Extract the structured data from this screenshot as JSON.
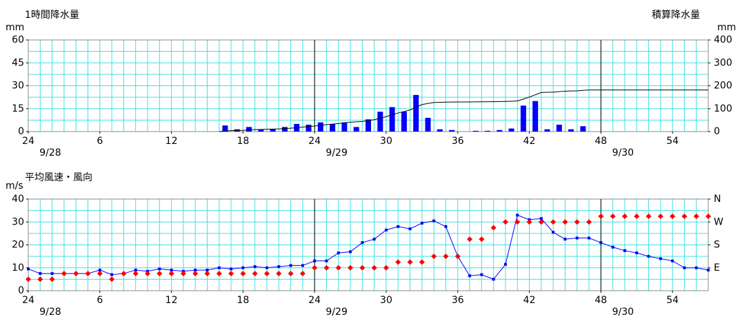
{
  "chart_data": [
    {
      "type": "bar",
      "title": "1時間降水量",
      "y_label": "mm",
      "y2_title": "積算降水量",
      "y2_label": "mm",
      "xlim": [
        0,
        57
      ],
      "xticks": [
        {
          "value": 0,
          "label": "24"
        },
        6,
        12,
        18,
        24,
        30,
        36,
        42,
        48,
        54
      ],
      "date_labels": [
        {
          "x": 0,
          "label": "9/28"
        },
        {
          "x": 24,
          "label": "9/29"
        },
        {
          "x": 48,
          "label": "9/30"
        }
      ],
      "ylim": [
        0,
        60
      ],
      "yticks": [
        0,
        15,
        30,
        45,
        60
      ],
      "y2lim": [
        0,
        400
      ],
      "y2ticks": [
        0,
        100,
        200,
        300,
        400
      ],
      "grid": true,
      "grid_color": "#40e0e0",
      "xgrid_step": 1,
      "ygrid_step": 7.5,
      "series": [
        {
          "type": "bar",
          "color": "#0000ff",
          "x": [
            16.5,
            17.5,
            18.5,
            19.5,
            20.5,
            21.5,
            22.5,
            23.5,
            24.5,
            25.5,
            26.5,
            27.5,
            28.5,
            29.5,
            30.5,
            31.5,
            32.5,
            33.5,
            34.5,
            35.5,
            36.5,
            37.5,
            38.5,
            39.5,
            40.5,
            41.5,
            42.5,
            43.5,
            44.5,
            45.5,
            46.5
          ],
          "values": [
            4,
            1.5,
            3,
            1.5,
            1.5,
            3,
            5,
            4.5,
            6,
            5,
            6,
            3,
            8,
            13,
            16,
            13,
            24,
            9,
            1.5,
            1,
            0,
            0.5,
            0.5,
            1,
            2,
            17,
            20,
            1.5,
            4.5,
            1.5,
            3.5
          ]
        },
        {
          "type": "line",
          "axis": "y2",
          "color": "#000000",
          "x": [
            16,
            17,
            18,
            19,
            20,
            21,
            22,
            23,
            24,
            25,
            26,
            27,
            28,
            29,
            30,
            31,
            32,
            33,
            34,
            35,
            36,
            37,
            38,
            39,
            40,
            41,
            42,
            43,
            44,
            45,
            46,
            47,
            57
          ],
          "values": [
            0,
            4,
            5.5,
            8.5,
            10,
            11.5,
            14.5,
            19.5,
            24,
            30,
            35,
            41,
            44,
            52,
            65,
            81,
            94,
            118,
            127,
            128.5,
            129.5,
            129.5,
            130,
            130.5,
            131.5,
            133.5,
            150.5,
            170.5,
            172,
            176.5,
            178,
            181.5,
            181.5
          ]
        }
      ]
    },
    {
      "type": "line",
      "title": "平均風速・風向",
      "y_label": "m/s",
      "xlim": [
        0,
        57
      ],
      "xticks": [
        {
          "value": 0,
          "label": "24"
        },
        6,
        12,
        18,
        24,
        30,
        36,
        42,
        48,
        54
      ],
      "date_labels": [
        {
          "x": 0,
          "label": "9/28"
        },
        {
          "x": 24,
          "label": "9/29"
        },
        {
          "x": 48,
          "label": "9/30"
        }
      ],
      "ylim": [
        0,
        40
      ],
      "yticks": [
        0,
        10,
        20,
        30,
        40
      ],
      "y2lim": [
        0,
        360
      ],
      "y2ticks": [
        {
          "value": 90,
          "label": "E"
        },
        {
          "value": 180,
          "label": "S"
        },
        {
          "value": 270,
          "label": "W"
        },
        {
          "value": 360,
          "label": "N"
        }
      ],
      "y2tick_color": "#ff0000",
      "grid": true,
      "grid_color": "#40e0e0",
      "xgrid_step": 1,
      "ygrid_step": 5,
      "x": [
        0,
        1,
        2,
        3,
        4,
        5,
        6,
        7,
        8,
        9,
        10,
        11,
        12,
        13,
        14,
        15,
        16,
        17,
        18,
        19,
        20,
        21,
        22,
        23,
        24,
        25,
        26,
        27,
        28,
        29,
        30,
        31,
        32,
        33,
        34,
        35,
        36,
        37,
        38,
        39,
        40,
        41,
        42,
        43,
        44,
        45,
        46,
        47,
        48,
        49,
        50,
        51,
        52,
        53,
        54,
        55,
        56,
        57
      ],
      "series": [
        {
          "type": "line",
          "color": "#0000ff",
          "marker": "square",
          "values": [
            9.5,
            7.5,
            7.5,
            7.5,
            7.5,
            7.5,
            9,
            7,
            7.5,
            9,
            8.5,
            9.5,
            9,
            8.5,
            9,
            9,
            10,
            9.5,
            10,
            10.5,
            10,
            10.5,
            11,
            11,
            13,
            13,
            16.5,
            17,
            21,
            22.5,
            26.5,
            28,
            27,
            29.5,
            30.5,
            28,
            15,
            6.5,
            7,
            5,
            11.5,
            33,
            31,
            31.5,
            25.5,
            22.5,
            23,
            23,
            21,
            19,
            17.5,
            16.5,
            15,
            14,
            13,
            10,
            10,
            9
          ]
        },
        {
          "type": "scatter",
          "axis": "y2",
          "color": "#ff0000",
          "marker": "diamond",
          "values": [
            45,
            45,
            45,
            67.5,
            67.5,
            67.5,
            67.5,
            45,
            67.5,
            67.5,
            67.5,
            67.5,
            67.5,
            67.5,
            67.5,
            67.5,
            67.5,
            67.5,
            67.5,
            67.5,
            67.5,
            67.5,
            67.5,
            67.5,
            90,
            90,
            90,
            90,
            90,
            90,
            90,
            112.5,
            112.5,
            112.5,
            135,
            135,
            135,
            202.5,
            202.5,
            247.5,
            270,
            270,
            270,
            270,
            270,
            270,
            270,
            270,
            292.5,
            292.5,
            292.5,
            292.5,
            292.5,
            292.5,
            292.5,
            292.5,
            292.5,
            292.5
          ]
        }
      ]
    }
  ]
}
